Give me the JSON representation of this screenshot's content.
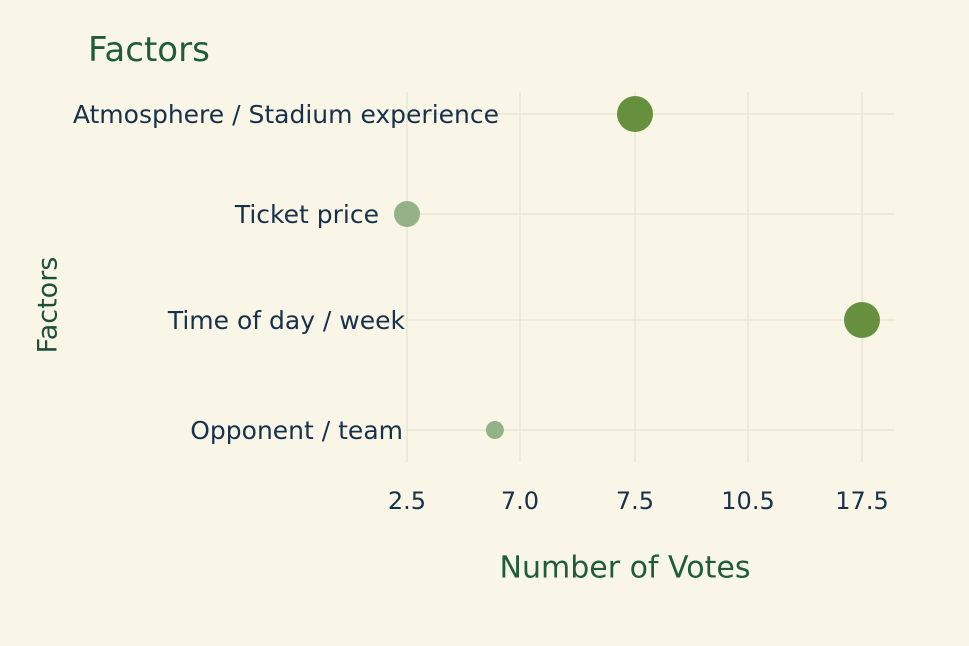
{
  "chart_data": {
    "type": "scatter",
    "title": "Factors",
    "ylabel": "Factors",
    "xlabel": "Number of Votes",
    "x_ticks": [
      "2.5",
      "7.0",
      "7.5",
      "10.5",
      "17.5"
    ],
    "categories": [
      "Atmosphere / Stadium experience",
      "Ticket price",
      "Time of day / week",
      "Opponent / team"
    ],
    "points": [
      {
        "category": "Atmosphere / Stadium experience",
        "x": 7.5,
        "color": "#5e8a35",
        "size": "large"
      },
      {
        "category": "Ticket price",
        "x": 2.5,
        "color": "#8fae82",
        "size": "medium"
      },
      {
        "category": "Time of day / week",
        "x": 17.5,
        "color": "#5e8a35",
        "size": "large"
      },
      {
        "category": "Opponent / team",
        "x": 6.0,
        "color": "#8fae82",
        "size": "small"
      }
    ],
    "grid": true,
    "legend": "none"
  }
}
